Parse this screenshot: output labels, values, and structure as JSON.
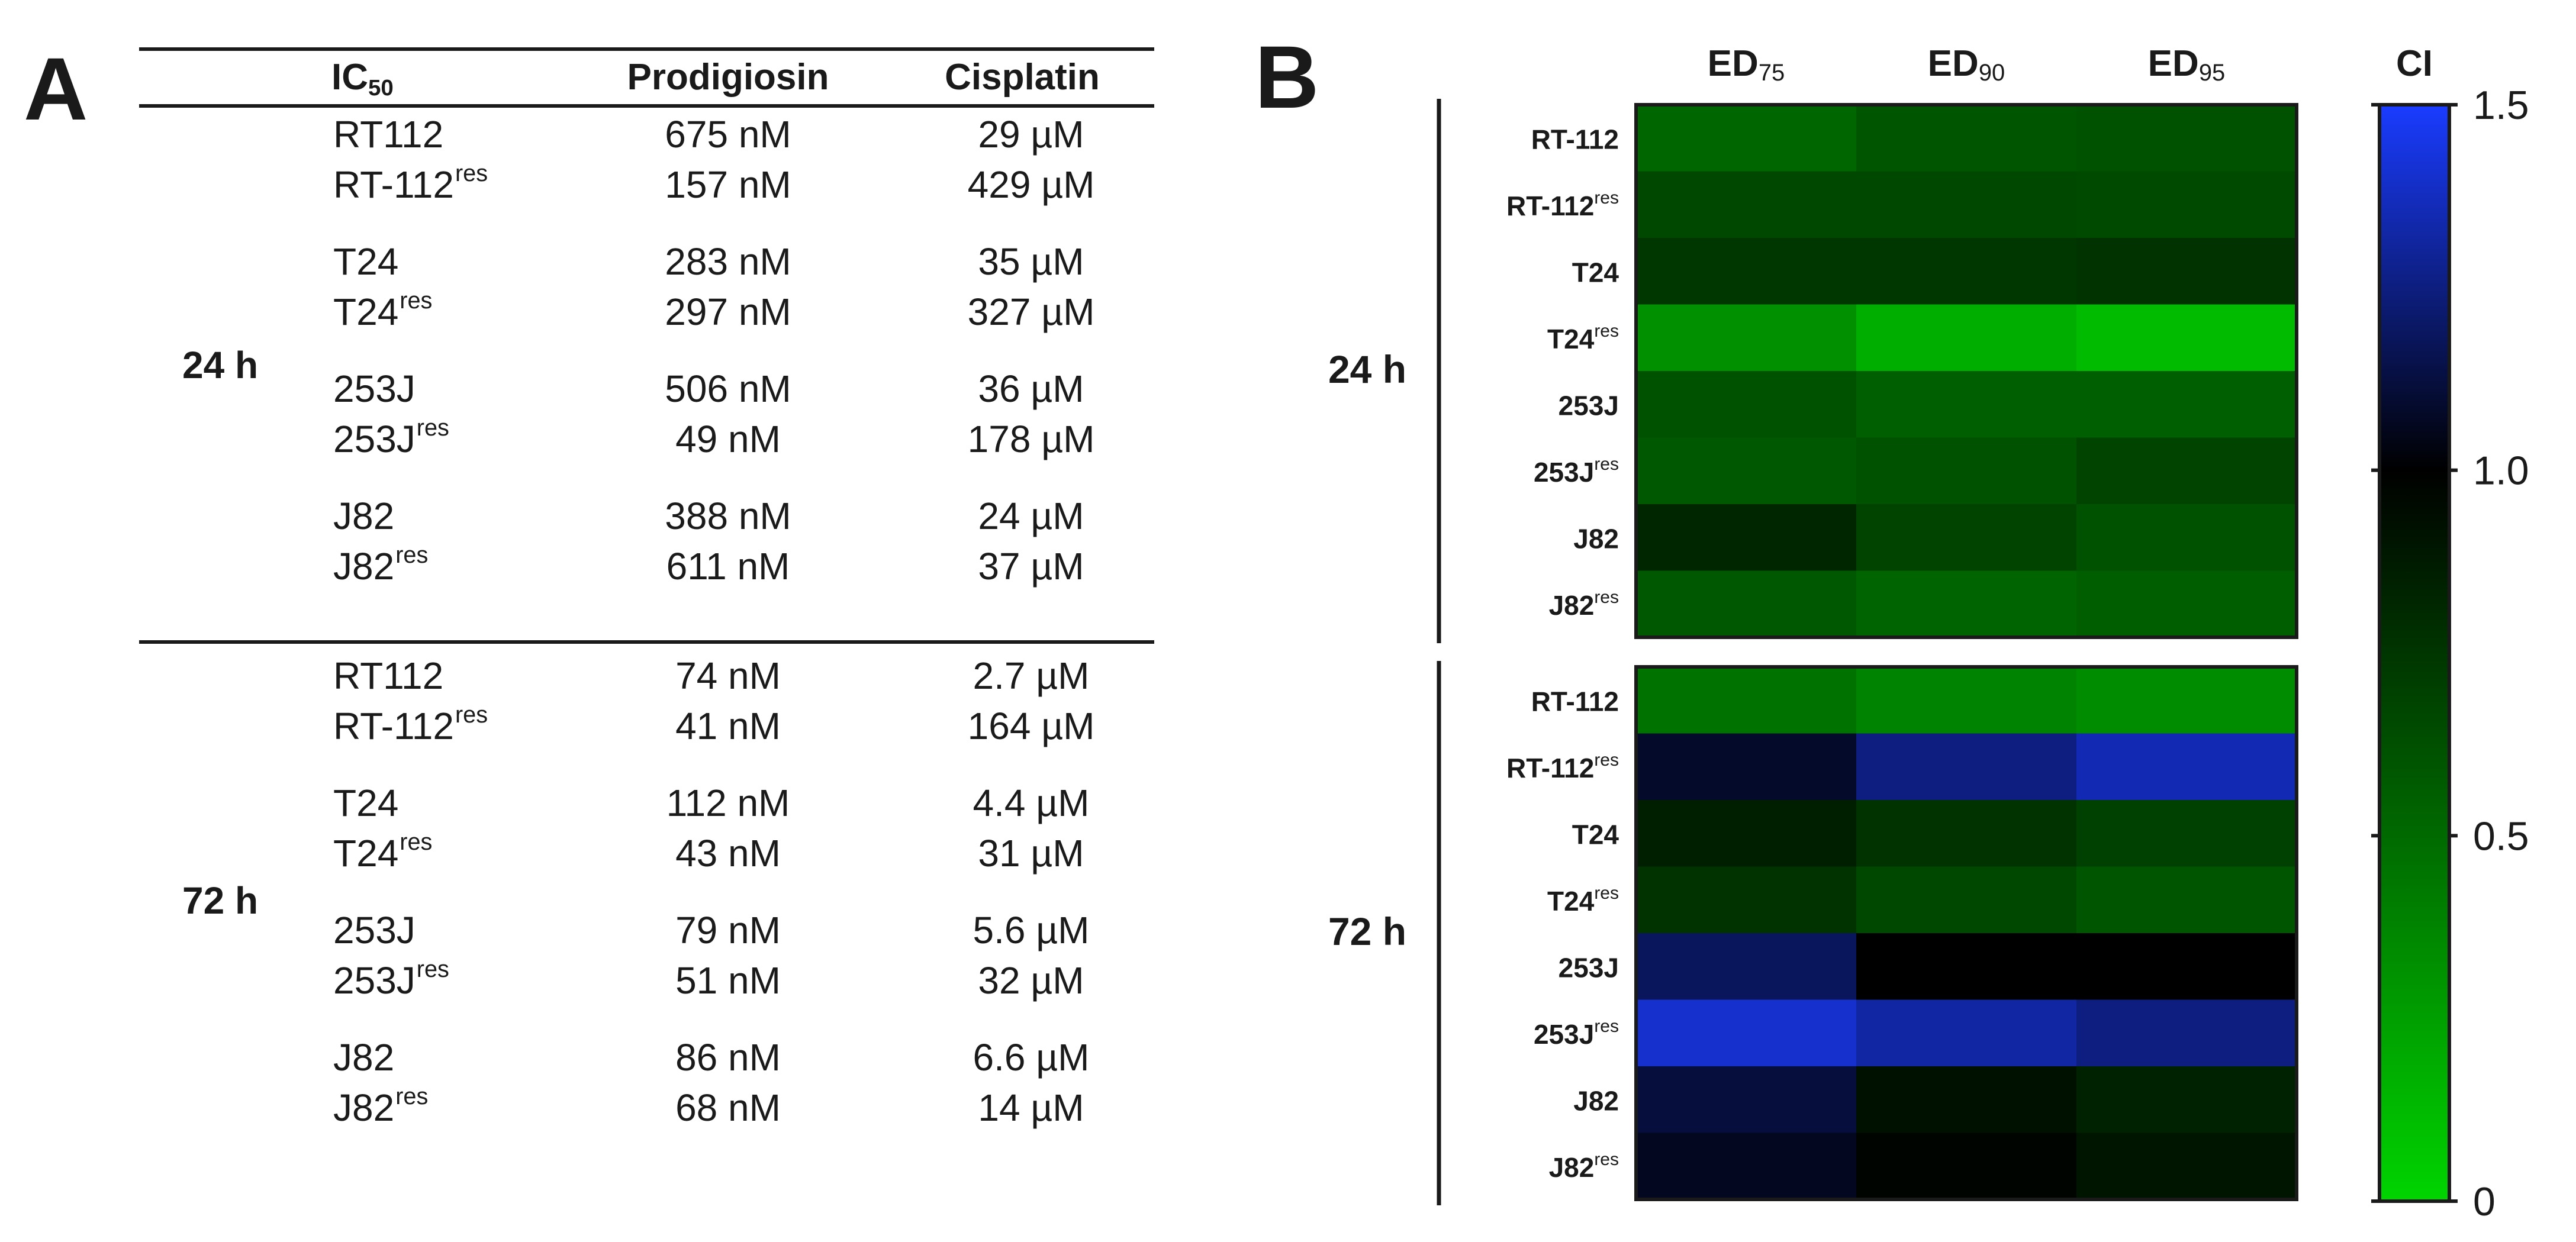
{
  "panel_a": {
    "letter": "A",
    "header": {
      "ic50_main": "IC",
      "ic50_sub": "50",
      "prodigiosin": "Prodigiosin",
      "cisplatin": "Cisplatin"
    },
    "groups": [
      {
        "label": "24 h",
        "rows": [
          {
            "line": "RT112",
            "res": "",
            "prodigiosin": "675 nM",
            "cisplatin": "29 µM"
          },
          {
            "line": "RT-112",
            "res": "res",
            "prodigiosin": "157 nM",
            "cisplatin": "429 µM"
          },
          {
            "line": "T24",
            "res": "",
            "prodigiosin": "283 nM",
            "cisplatin": "35 µM"
          },
          {
            "line": "T24",
            "res": "res",
            "prodigiosin": "297 nM",
            "cisplatin": "327 µM"
          },
          {
            "line": "253J",
            "res": "",
            "prodigiosin": "506 nM",
            "cisplatin": "36 µM"
          },
          {
            "line": "253J",
            "res": "res",
            "prodigiosin": "49 nM",
            "cisplatin": "178 µM"
          },
          {
            "line": "J82",
            "res": "",
            "prodigiosin": "388 nM",
            "cisplatin": "24 µM"
          },
          {
            "line": "J82",
            "res": "res",
            "prodigiosin": "611 nM",
            "cisplatin": "37 µM"
          }
        ]
      },
      {
        "label": "72 h",
        "rows": [
          {
            "line": "RT112",
            "res": "",
            "prodigiosin": "74 nM",
            "cisplatin": "2.7 µM"
          },
          {
            "line": "RT-112",
            "res": "res",
            "prodigiosin": "41 nM",
            "cisplatin": "164 µM"
          },
          {
            "line": "T24",
            "res": "",
            "prodigiosin": "112 nM",
            "cisplatin": "4.4 µM"
          },
          {
            "line": "T24",
            "res": "res",
            "prodigiosin": "43 nM",
            "cisplatin": "31 µM"
          },
          {
            "line": "253J",
            "res": "",
            "prodigiosin": "79 nM",
            "cisplatin": "5.6 µM"
          },
          {
            "line": "253J",
            "res": "res",
            "prodigiosin": "51 nM",
            "cisplatin": "32 µM"
          },
          {
            "line": "J82",
            "res": "",
            "prodigiosin": "86 nM",
            "cisplatin": "6.6 µM"
          },
          {
            "line": "J82",
            "res": "res",
            "prodigiosin": "68 nM",
            "cisplatin": "14 µM"
          }
        ]
      }
    ]
  },
  "chart_data": {
    "type": "heatmap",
    "panel_letter": "B",
    "columns": [
      {
        "main": "ED",
        "sub": "75"
      },
      {
        "main": "ED",
        "sub": "90"
      },
      {
        "main": "ED",
        "sub": "95"
      }
    ],
    "groups": [
      {
        "label": "24 h",
        "rows": [
          {
            "name": "RT-112",
            "res": "",
            "values": [
              0.52,
              0.6,
              0.62
            ]
          },
          {
            "name": "RT-112",
            "res": "res",
            "values": [
              0.66,
              0.66,
              0.65
            ]
          },
          {
            "name": "T24",
            "res": "",
            "values": [
              0.74,
              0.74,
              0.76
            ]
          },
          {
            "name": "T24",
            "res": "res",
            "values": [
              0.32,
              0.18,
              0.12
            ]
          },
          {
            "name": "253J",
            "res": "",
            "values": [
              0.62,
              0.55,
              0.55
            ]
          },
          {
            "name": "253J",
            "res": "res",
            "values": [
              0.58,
              0.62,
              0.68
            ]
          },
          {
            "name": "J82",
            "res": "",
            "values": [
              0.82,
              0.68,
              0.62
            ]
          },
          {
            "name": "J82",
            "res": "res",
            "values": [
              0.58,
              0.53,
              0.56
            ]
          }
        ]
      },
      {
        "label": "72 h",
        "rows": [
          {
            "name": "RT-112",
            "res": "",
            "values": [
              0.46,
              0.38,
              0.34
            ]
          },
          {
            "name": "RT-112",
            "res": "res",
            "values": [
              1.08,
              1.25,
              1.35
            ]
          },
          {
            "name": "T24",
            "res": "",
            "values": [
              0.86,
              0.76,
              0.7
            ]
          },
          {
            "name": "T24",
            "res": "res",
            "values": [
              0.76,
              0.66,
              0.6
            ]
          },
          {
            "name": "253J",
            "res": "",
            "values": [
              1.18,
              1.0,
              1.0
            ]
          },
          {
            "name": "253J",
            "res": "res",
            "values": [
              1.4,
              1.32,
              1.25
            ]
          },
          {
            "name": "J82",
            "res": "",
            "values": [
              1.12,
              0.92,
              0.84
            ]
          },
          {
            "name": "J82",
            "res": "res",
            "values": [
              1.06,
              0.98,
              0.9
            ]
          }
        ]
      }
    ],
    "colorbar": {
      "label": "CI",
      "range": [
        0,
        1.5
      ],
      "ticks": [
        "1.5",
        "1.0",
        "0.5",
        "0"
      ],
      "tick_values": [
        1.5,
        1.0,
        0.5,
        0
      ],
      "stops": [
        {
          "value": 0,
          "color": "#00d400"
        },
        {
          "value": 1.0,
          "color": "#000000"
        },
        {
          "value": 1.5,
          "color": "#1a3cff"
        }
      ]
    }
  }
}
